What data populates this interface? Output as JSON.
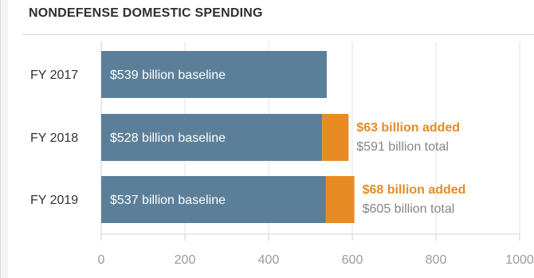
{
  "chart_data": {
    "type": "bar",
    "title": "NONDEFENSE DOMESTIC SPENDING",
    "categories": [
      "FY 2017",
      "FY 2018",
      "FY 2019"
    ],
    "series": [
      {
        "values": [
          539,
          528,
          537
        ]
      },
      {
        "values": [
          0,
          63,
          68
        ]
      }
    ],
    "bar_labels": [
      "$539 billion baseline",
      "$528 billion baseline",
      "$537 billion baseline"
    ],
    "added_labels": [
      "",
      "$63 billion added",
      "$68 billion added"
    ],
    "total_labels": [
      "",
      "$591 billion total",
      "$605 billion total"
    ],
    "xticks": [
      "0",
      "200",
      "400",
      "600",
      "800",
      "1000"
    ],
    "xlim": [
      0,
      1000
    ],
    "grid": true,
    "colors": {
      "baseline": "#5b7f99",
      "added": "#e78b25"
    }
  }
}
